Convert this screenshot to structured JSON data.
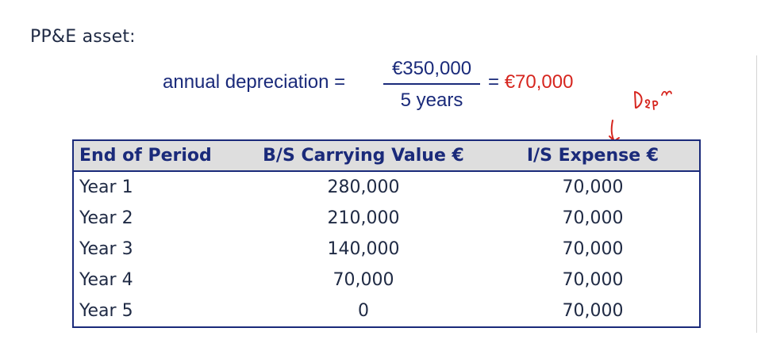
{
  "heading": "PP&E asset:",
  "formula": {
    "label": "annual depreciation =",
    "numerator": "€350,000",
    "denominator": "5 years",
    "equals": "=",
    "result": "€70,000"
  },
  "annotation": {
    "handwritten_text": "Dep'n",
    "color": "#d6261f"
  },
  "table": {
    "headers": [
      "End of Period",
      "B/S Carrying Value €",
      "I/S Expense €"
    ],
    "rows": [
      [
        "Year 1",
        "280,000",
        "70,000"
      ],
      [
        "Year 2",
        "210,000",
        "70,000"
      ],
      [
        "Year 3",
        "140,000",
        "70,000"
      ],
      [
        "Year 4",
        "70,000",
        "70,000"
      ],
      [
        "Year 5",
        "0",
        "70,000"
      ]
    ]
  },
  "colors": {
    "navy": "#1a2a7a",
    "red": "#d6261f",
    "header_bg": "#dedede"
  }
}
